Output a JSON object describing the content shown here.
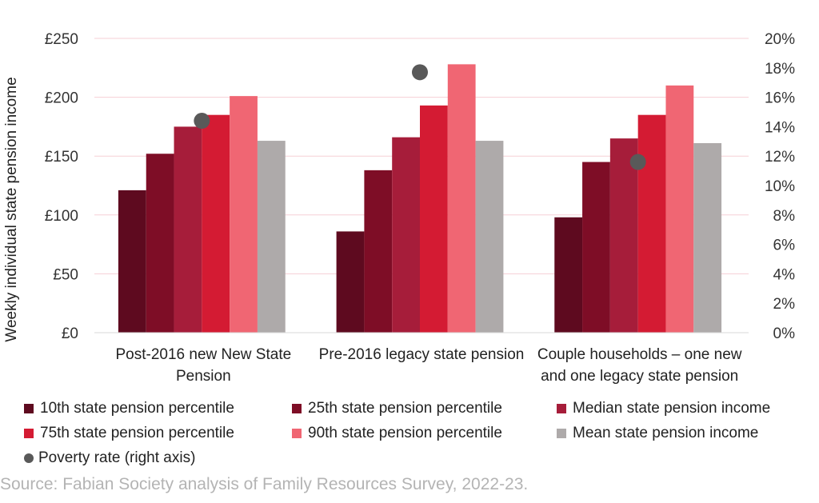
{
  "chart_data": {
    "type": "bar",
    "y_axis_label": "Weekly individual state pension income",
    "left_ticks": [
      "£0",
      "£50",
      "£100",
      "£150",
      "£200",
      "£250"
    ],
    "right_ticks": [
      "0%",
      "2%",
      "4%",
      "6%",
      "8%",
      "10%",
      "12%",
      "14%",
      "16%",
      "18%",
      "20%"
    ],
    "ylim": [
      0,
      250
    ],
    "y2lim": [
      0,
      20
    ],
    "categories": [
      [
        "Post-2016 new New State",
        "Pension"
      ],
      [
        "Pre-2016 legacy state pension"
      ],
      [
        "Couple households – one new",
        "and one legacy state pension"
      ]
    ],
    "series": [
      {
        "name": "10th state pension percentile",
        "color": "#5e0a1f",
        "values": [
          121,
          86,
          98
        ]
      },
      {
        "name": "25th state pension percentile",
        "color": "#7e0d26",
        "values": [
          152,
          138,
          145
        ]
      },
      {
        "name": "Median state pension income",
        "color": "#a61d3a",
        "values": [
          175,
          166,
          165
        ]
      },
      {
        "name": "75th state pension percentile",
        "color": "#d41b33",
        "values": [
          185,
          193,
          185
        ]
      },
      {
        "name": "90th state pension percentile",
        "color": "#f06673",
        "values": [
          201,
          228,
          210
        ]
      },
      {
        "name": "Mean state pension income",
        "color": "#aeaaaa",
        "values": [
          163,
          163,
          161
        ]
      }
    ],
    "poverty": {
      "name": "Poverty rate (right axis)",
      "color": "#595959",
      "values": [
        14.4,
        17.7,
        11.6
      ]
    }
  },
  "source": "Source: Fabian Society analysis of Family Resources Survey, 2022-23."
}
